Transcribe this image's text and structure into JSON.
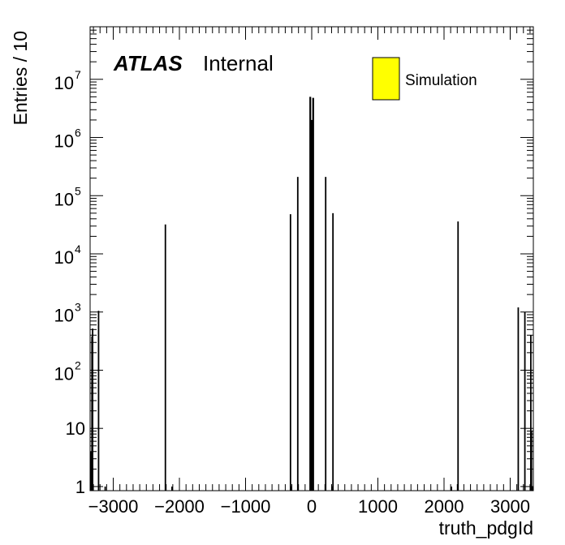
{
  "chart_data": {
    "type": "bar",
    "title": "",
    "xlabel": "truth_pdgId",
    "ylabel": "Entries / 10",
    "yscale": "log",
    "xlim": [
      -3350,
      3350
    ],
    "ylim": [
      0.85,
      80000000
    ],
    "grid": false,
    "legend_placement": "top-right",
    "x_ticks": [
      {
        "value": -3000,
        "label": "−3000"
      },
      {
        "value": -2000,
        "label": "−2000"
      },
      {
        "value": -1000,
        "label": "−1000"
      },
      {
        "value": 0,
        "label": "0"
      },
      {
        "value": 1000,
        "label": "1000"
      },
      {
        "value": 2000,
        "label": "2000"
      },
      {
        "value": 3000,
        "label": "3000"
      }
    ],
    "y_ticks": [
      {
        "value": 1,
        "label": "1",
        "exp": ""
      },
      {
        "value": 10,
        "label": "10",
        "exp": ""
      },
      {
        "value": 100,
        "label": "10",
        "exp": "2"
      },
      {
        "value": 1000,
        "label": "10",
        "exp": "3"
      },
      {
        "value": 10000,
        "label": "10",
        "exp": "4"
      },
      {
        "value": 100000,
        "label": "10",
        "exp": "5"
      },
      {
        "value": 1000000,
        "label": "10",
        "exp": "6"
      },
      {
        "value": 10000000,
        "label": "10",
        "exp": "7"
      }
    ],
    "series": [
      {
        "name": "Simulation",
        "color": "#ffff00",
        "x": [
          -3334,
          -3322,
          -3312,
          -3222,
          -3122,
          -2212,
          -2112,
          -321,
          -310,
          -211,
          -22,
          -11,
          0,
          11,
          22,
          211,
          310,
          321,
          2112,
          2212,
          3122,
          3222,
          3312,
          3322,
          3334
        ],
        "values": [
          4,
          380,
          520,
          1050,
          1,
          32000,
          1,
          48000,
          1,
          210000,
          5000000,
          1,
          2000000,
          1,
          4800000,
          210000,
          1,
          50000,
          1,
          36000,
          1200,
          1000,
          400,
          9,
          1
        ]
      }
    ],
    "annotations": {
      "atlas": "ATLAS",
      "internal": "Internal"
    }
  }
}
